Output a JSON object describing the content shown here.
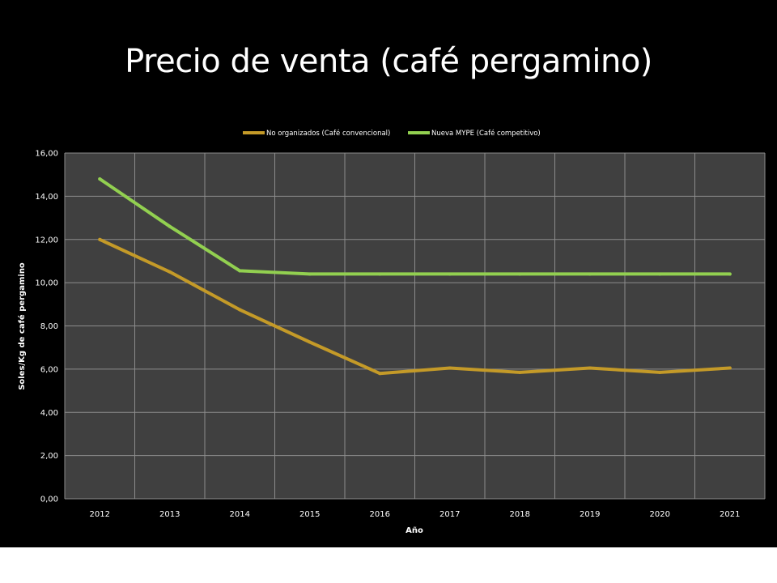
{
  "slide": {
    "title": "Precio de venta (café pergamino)"
  },
  "chart_data": {
    "type": "line",
    "title": "",
    "xlabel": "Año",
    "ylabel": "Soles/Kg de café pergamino",
    "categories": [
      "2012",
      "2013",
      "2014",
      "2015",
      "2016",
      "2017",
      "2018",
      "2019",
      "2020",
      "2021"
    ],
    "series": [
      {
        "name": "No organizados (Café convencional)",
        "color": "#C49A28",
        "values": [
          12.0,
          10.5,
          8.75,
          7.25,
          5.8,
          6.05,
          5.85,
          6.05,
          5.85,
          6.05
        ]
      },
      {
        "name": "Nueva MYPE (Café competitivo)",
        "color": "#92D050",
        "values": [
          14.8,
          12.6,
          10.55,
          10.4,
          10.4,
          10.4,
          10.4,
          10.4,
          10.4,
          10.4
        ]
      }
    ],
    "ylim": [
      0,
      16
    ],
    "yticks": [
      "0,00",
      "2,00",
      "4,00",
      "6,00",
      "8,00",
      "10,00",
      "12,00",
      "14,00",
      "16,00"
    ],
    "grid": true,
    "legend_position": "top",
    "plot_background": "#404040"
  }
}
